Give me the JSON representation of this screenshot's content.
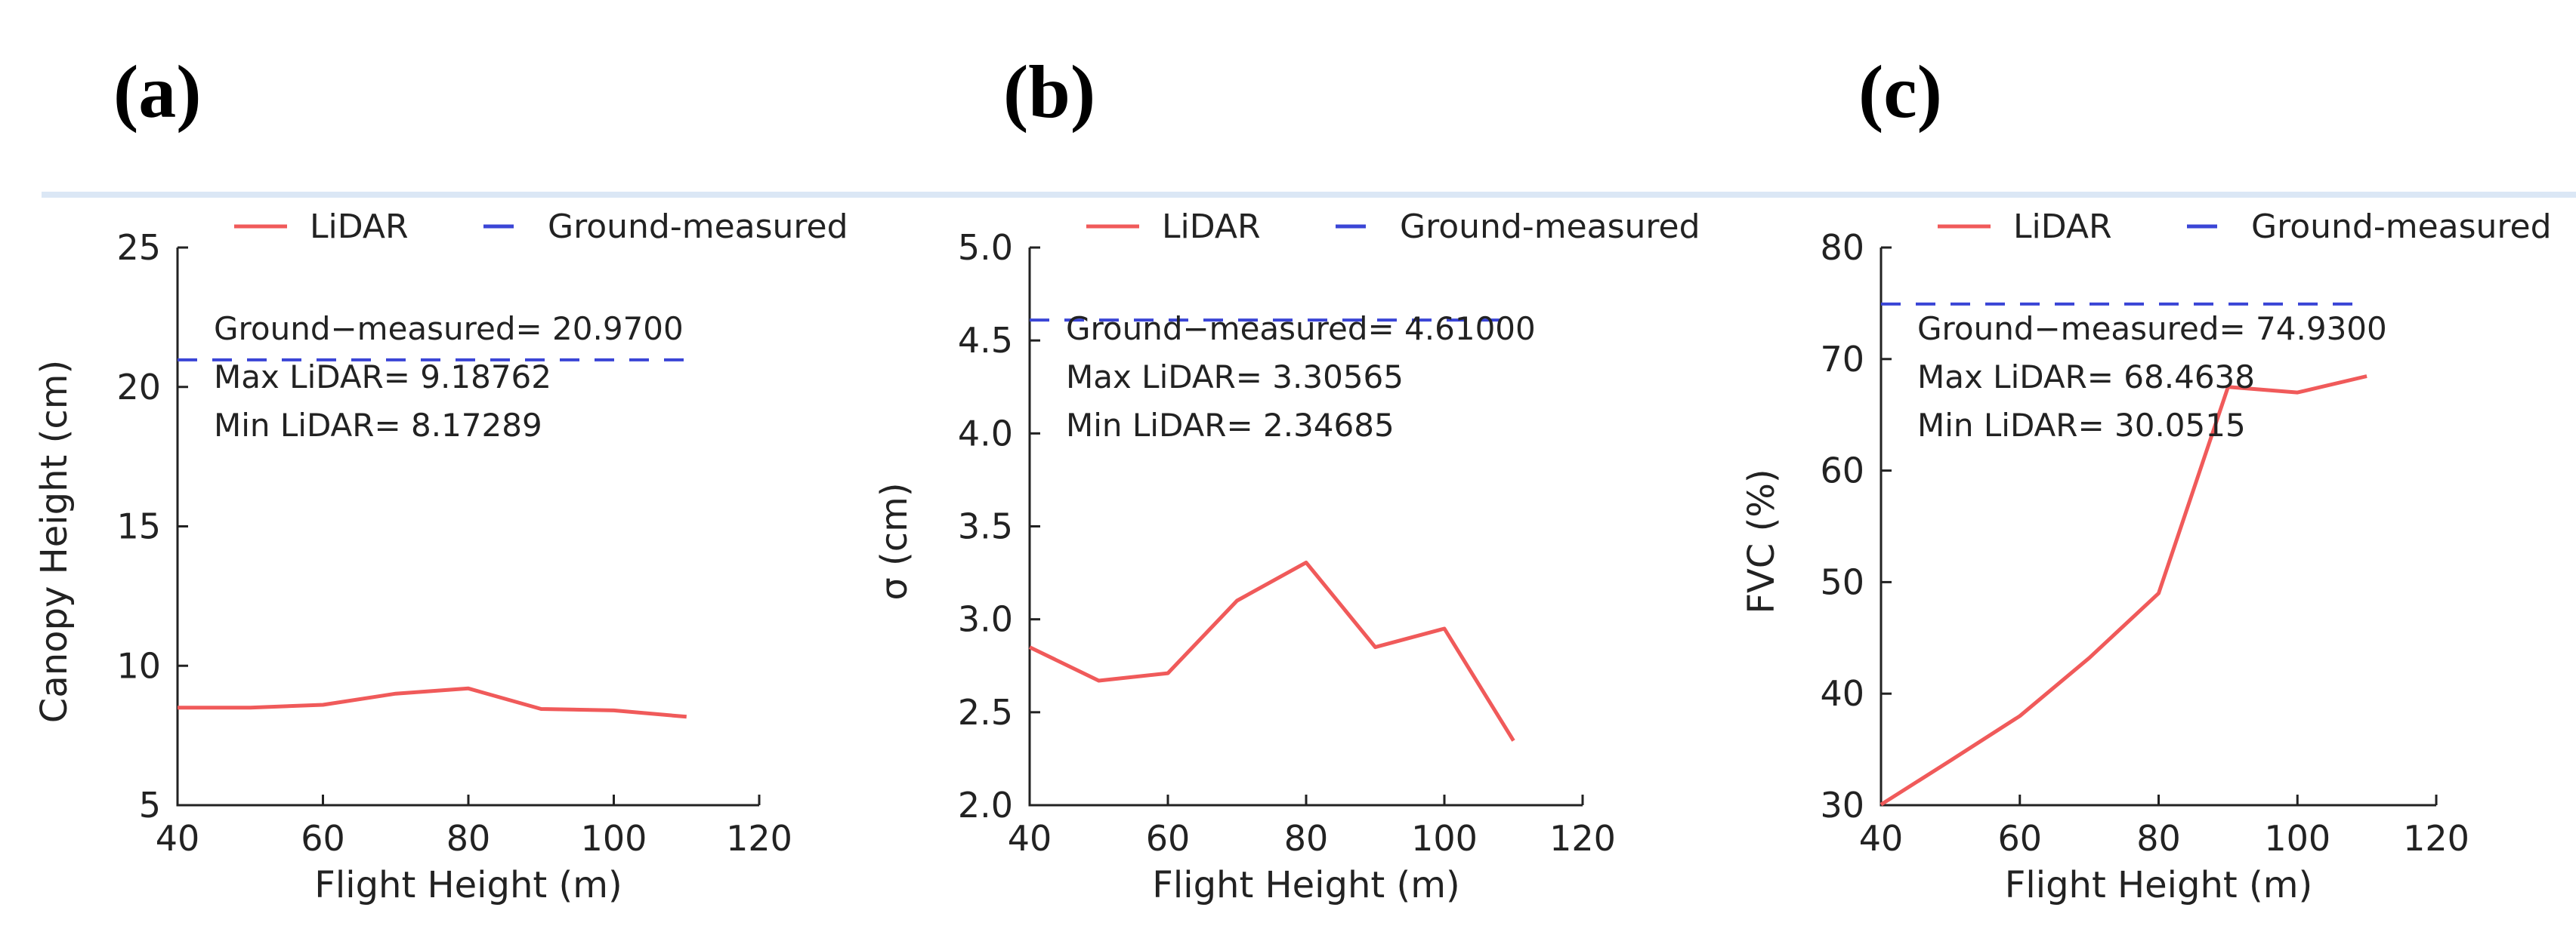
{
  "chart_data": [
    {
      "type": "line",
      "panel_label": "(a)",
      "xlabel": "Flight Height (m)",
      "ylabel": "Canopy Height (cm)",
      "xlim": [
        40,
        120
      ],
      "ylim": [
        5,
        25
      ],
      "xticks": [
        40,
        60,
        80,
        100,
        120
      ],
      "yticks": [
        5,
        10,
        15,
        20,
        25
      ],
      "legend": [
        "LiDAR",
        "Ground-measured"
      ],
      "legend_position": "top",
      "series": [
        {
          "name": "LiDAR",
          "color": "#f05a5a",
          "x": [
            40,
            50,
            60,
            70,
            80,
            90,
            100,
            110
          ],
          "values": [
            8.5,
            8.5,
            8.6,
            9.0,
            9.18762,
            8.45,
            8.4,
            8.17289
          ]
        }
      ],
      "reference": {
        "name": "Ground-measured",
        "value": 20.97,
        "color": "#3a45d6",
        "x_range": [
          40,
          110
        ]
      },
      "annotations": [
        "Ground−measured= 20.9700",
        "Max LiDAR= 9.18762",
        "Min LiDAR= 8.17289"
      ]
    },
    {
      "type": "line",
      "panel_label": "(b)",
      "xlabel": "Flight Height (m)",
      "ylabel": "σ (cm)",
      "xlim": [
        40,
        120
      ],
      "ylim": [
        2.0,
        5.0
      ],
      "xticks": [
        40,
        60,
        80,
        100,
        120
      ],
      "yticks": [
        2.0,
        2.5,
        3.0,
        3.5,
        4.0,
        4.5,
        5.0
      ],
      "legend": [
        "LiDAR",
        "Ground-measured"
      ],
      "legend_position": "top",
      "series": [
        {
          "name": "LiDAR",
          "color": "#f05a5a",
          "x": [
            40,
            50,
            60,
            70,
            80,
            90,
            100,
            110
          ],
          "values": [
            2.85,
            2.67,
            2.71,
            3.1,
            3.30565,
            2.85,
            2.95,
            2.34685
          ]
        }
      ],
      "reference": {
        "name": "Ground-measured",
        "value": 4.61,
        "color": "#3a45d6",
        "x_range": [
          40,
          110
        ]
      },
      "annotations": [
        "Ground−measured= 4.61000",
        "Max LiDAR= 3.30565",
        "Min LiDAR= 2.34685"
      ]
    },
    {
      "type": "line",
      "panel_label": "(c)",
      "xlabel": "Flight Height (m)",
      "ylabel": "FVC (%)",
      "xlim": [
        40,
        120
      ],
      "ylim": [
        30,
        80
      ],
      "xticks": [
        40,
        60,
        80,
        100,
        120
      ],
      "yticks": [
        30,
        40,
        50,
        60,
        70,
        80
      ],
      "legend": [
        "LiDAR",
        "Ground-measured"
      ],
      "legend_position": "top",
      "series": [
        {
          "name": "LiDAR",
          "color": "#f05a5a",
          "x": [
            40,
            50,
            60,
            70,
            80,
            90,
            100,
            110
          ],
          "values": [
            30.0515,
            34.0,
            38.0,
            43.2,
            49.0,
            67.5,
            67.0,
            68.4638
          ]
        }
      ],
      "reference": {
        "name": "Ground-measured",
        "value": 74.93,
        "color": "#3a45d6",
        "x_range": [
          40,
          110
        ]
      },
      "annotations": [
        "Ground−measured= 74.9300",
        "Max LiDAR= 68.4638",
        "Min LiDAR= 30.0515"
      ]
    }
  ]
}
